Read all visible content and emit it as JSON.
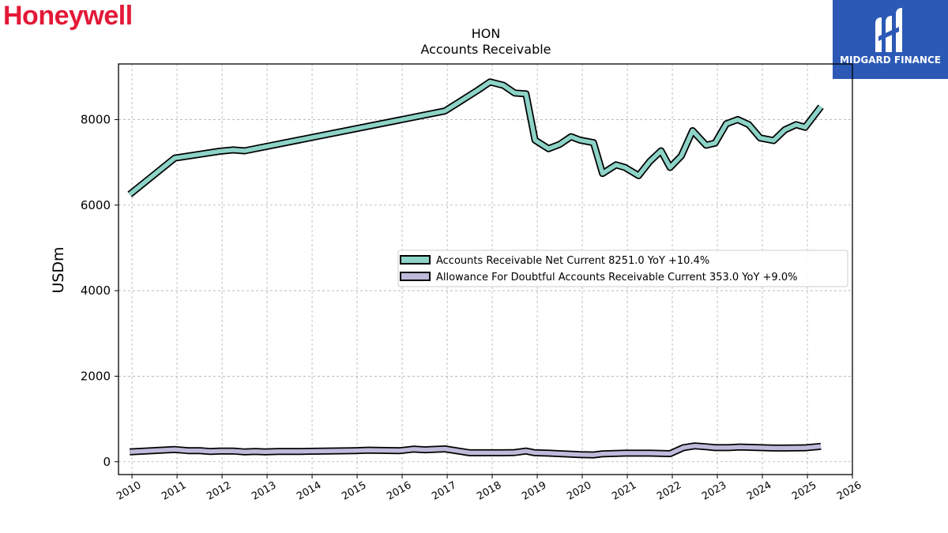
{
  "header": {
    "brand": "Honeywell",
    "brand_color": "#e31937",
    "logo_text": "MIDGARD FINANCE",
    "logo_color": "#2b59b5"
  },
  "chart_data": {
    "type": "line",
    "title": "HON",
    "subtitle": "Accounts Receivable",
    "xlabel": "",
    "ylabel": "USDm",
    "xlim": [
      2009.7,
      2026.0
    ],
    "ylim": [
      -300,
      9300
    ],
    "x_ticks": [
      "2010",
      "2011",
      "2012",
      "2013",
      "2014",
      "2015",
      "2016",
      "2017",
      "2018",
      "2019",
      "2020",
      "2021",
      "2022",
      "2023",
      "2024",
      "2025",
      "2026"
    ],
    "y_ticks": [
      "0",
      "2000",
      "4000",
      "6000",
      "8000"
    ],
    "grid": true,
    "legend_position": "center-right",
    "series": [
      {
        "name": "Accounts Receivable Net Current  8251.0 YoY +10.4%",
        "color": "#8dd3c7",
        "x": [
          2009.95,
          2010.95,
          2011.95,
          2012.25,
          2012.5,
          2016.95,
          2017.25,
          2017.7,
          2017.95,
          2018.25,
          2018.5,
          2018.75,
          2018.95,
          2019.25,
          2019.5,
          2019.75,
          2019.95,
          2020.25,
          2020.45,
          2020.75,
          2020.95,
          2021.25,
          2021.5,
          2021.75,
          2021.95,
          2022.2,
          2022.45,
          2022.75,
          2022.95,
          2023.2,
          2023.45,
          2023.7,
          2023.95,
          2024.25,
          2024.5,
          2024.75,
          2024.95,
          2025.3
        ],
        "y": [
          6250,
          7100,
          7260,
          7290,
          7270,
          8200,
          8400,
          8700,
          8880,
          8800,
          8620,
          8600,
          7520,
          7320,
          7420,
          7600,
          7520,
          7460,
          6740,
          6940,
          6880,
          6690,
          7020,
          7270,
          6880,
          7150,
          7740,
          7400,
          7450,
          7900,
          8000,
          7880,
          7570,
          7510,
          7760,
          7880,
          7820,
          8300
        ]
      },
      {
        "name": "Allowance For Doubtful Accounts Receivable Current  353.0 YoY +9.0%",
        "color": "#bebada",
        "x": [
          2009.95,
          2010.95,
          2011.25,
          2011.5,
          2011.75,
          2011.95,
          2012.25,
          2012.5,
          2012.75,
          2012.95,
          2013.25,
          2013.5,
          2013.75,
          2013.95,
          2014.95,
          2015.25,
          2015.95,
          2016.25,
          2016.5,
          2016.95,
          2017.25,
          2017.5,
          2017.95,
          2018.25,
          2018.5,
          2018.75,
          2018.95,
          2019.25,
          2019.95,
          2020.25,
          2020.45,
          2020.95,
          2021.5,
          2021.95,
          2022.25,
          2022.5,
          2022.75,
          2022.95,
          2023.25,
          2023.5,
          2023.95,
          2024.25,
          2024.5,
          2024.95,
          2025.3
        ],
        "y": [
          230,
          285,
          260,
          260,
          240,
          250,
          250,
          230,
          240,
          230,
          240,
          240,
          240,
          245,
          260,
          270,
          260,
          295,
          280,
          300,
          250,
          210,
          210,
          210,
          215,
          250,
          210,
          200,
          165,
          160,
          185,
          200,
          200,
          190,
          330,
          370,
          350,
          330,
          330,
          345,
          330,
          320,
          320,
          325,
          360
        ]
      }
    ]
  }
}
